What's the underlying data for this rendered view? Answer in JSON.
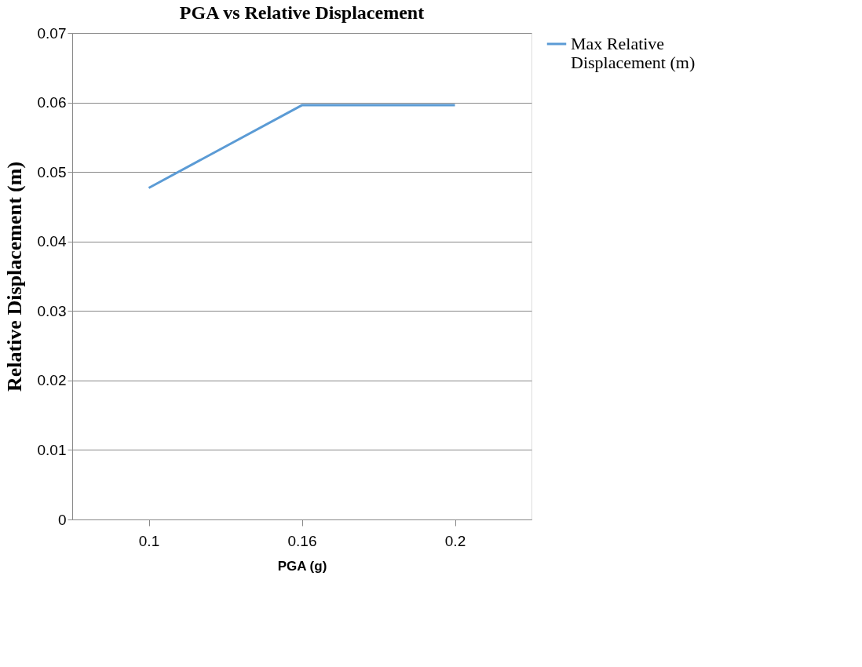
{
  "chart_data": {
    "type": "line",
    "title": "PGA vs Relative Displacement",
    "xlabel": "PGA (g)",
    "ylabel": "Relative Displacement (m)",
    "categories": [
      "0.1",
      "0.16",
      "0.2"
    ],
    "series": [
      {
        "name": "Max Relative Displacement (m)",
        "color": "#5b9bd5",
        "values": [
          0.0477,
          0.0596,
          0.0596
        ]
      }
    ],
    "ylim": [
      0,
      0.07
    ],
    "yticks": [
      0,
      0.01,
      0.02,
      0.03,
      0.04,
      0.05,
      0.06,
      0.07
    ],
    "grid": "y",
    "legend": "right",
    "marker": "none",
    "line_style": "solid"
  }
}
